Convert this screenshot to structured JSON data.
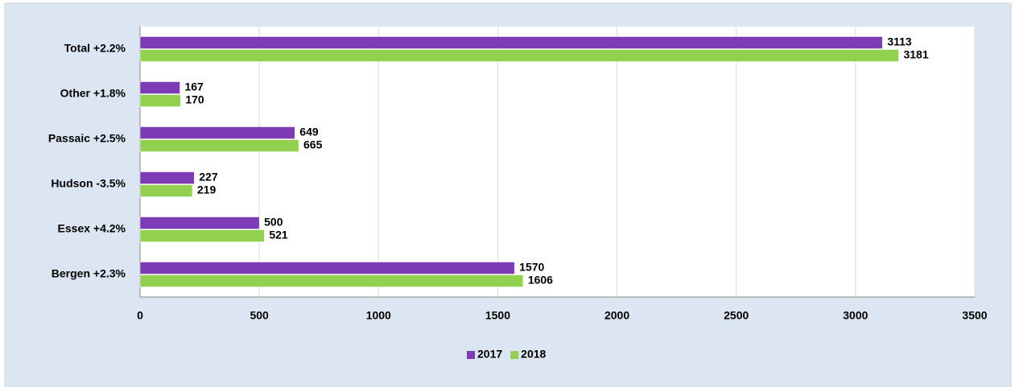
{
  "chart_data": {
    "type": "bar",
    "orientation": "horizontal",
    "categories": [
      "Total  +2.2%",
      "Other  +1.8%",
      "Passaic  +2.5%",
      "Hudson  -3.5%",
      "Essex  +4.2%",
      "Bergen  +2.3%"
    ],
    "series": [
      {
        "name": "2017",
        "color": "#7d3cb5",
        "values": [
          3113,
          167,
          649,
          227,
          500,
          1570
        ]
      },
      {
        "name": "2018",
        "color": "#92d050",
        "values": [
          3181,
          170,
          665,
          219,
          521,
          1606
        ]
      }
    ],
    "xlim": [
      0,
      3500
    ],
    "xticks": [
      0,
      500,
      1000,
      1500,
      2000,
      2500,
      3000,
      3500
    ],
    "grid": true,
    "legend": "bottom"
  }
}
